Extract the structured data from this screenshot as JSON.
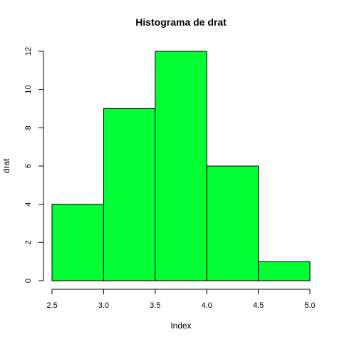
{
  "chart_data": {
    "type": "bar",
    "title": "Histograma de  drat",
    "xlabel": "Index",
    "ylabel": "drat",
    "bins": [
      {
        "x0": 2.5,
        "x1": 3.0,
        "count": 4
      },
      {
        "x0": 3.0,
        "x1": 3.5,
        "count": 9
      },
      {
        "x0": 3.5,
        "x1": 4.0,
        "count": 12
      },
      {
        "x0": 4.0,
        "x1": 4.5,
        "count": 6
      },
      {
        "x0": 4.5,
        "x1": 5.0,
        "count": 1
      }
    ],
    "xlim": [
      2.5,
      5.0
    ],
    "ylim": [
      0,
      12
    ],
    "xticks": [
      "2.5",
      "3.0",
      "3.5",
      "4.0",
      "4.5",
      "5.0"
    ],
    "yticks": [
      "0",
      "2",
      "4",
      "6",
      "8",
      "10",
      "12"
    ],
    "bar_color": "#00ff33",
    "border_color": "#000000",
    "grid": false,
    "legend": "none"
  }
}
